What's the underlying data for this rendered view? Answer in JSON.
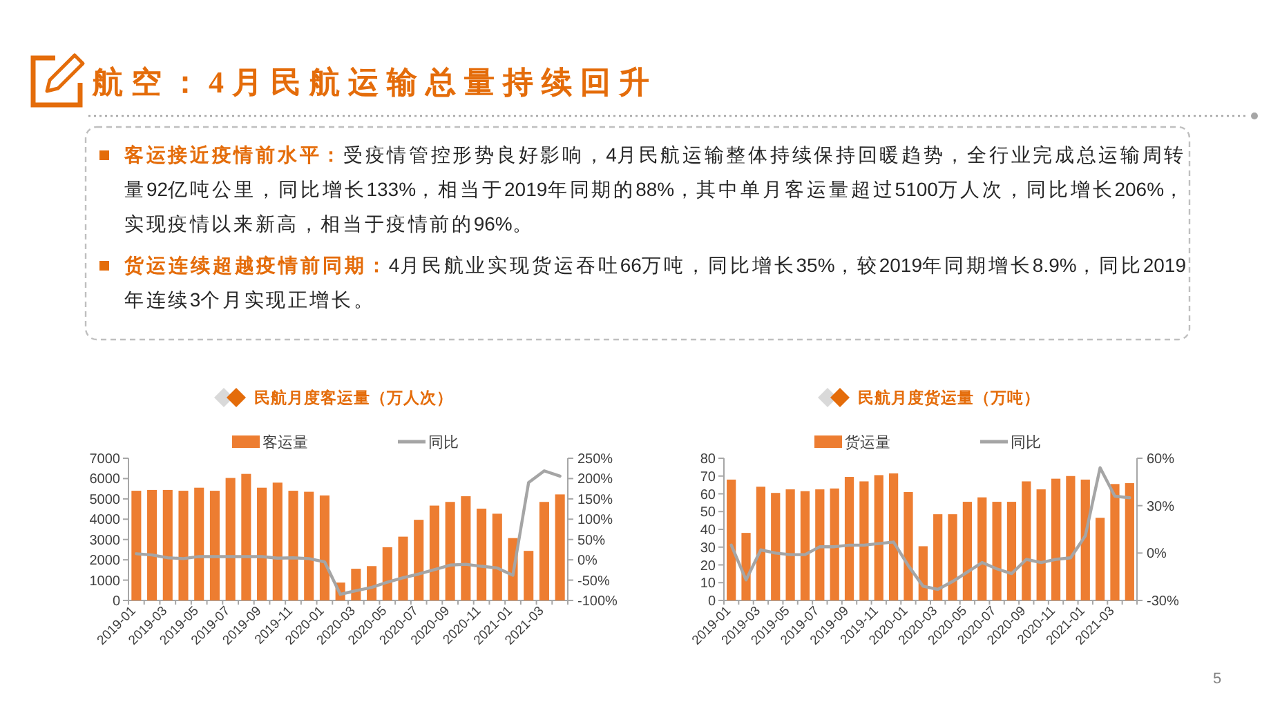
{
  "chart_data": [
    {
      "type": "other",
      "title": "航空：4月民航运输总量持续回升",
      "annotations": [
        "客运接近疫情前水平：",
        "受疫情管控形势良好影响，4月民航运输整体持续保持回暖趋势，全行业完成总运输周转量92亿吨公里，同比增长133%，相当于2019年同期的88%，其中单月客运量超过5100万人次，同比增长206%，实现疫情以来新高，相当于疫情前的96%。",
        "货运连续超越疫情前同期：",
        "4月民航业实现货运吞吐66万吨，同比增长35%，较2019年同期增长8.9%，同比2019年连续3个月实现正增长。",
        "5"
      ]
    },
    {
      "type": "bar",
      "title": "民航月度客运量（万人次）",
      "legend": "top",
      "categories": [
        "2019-01",
        null,
        "2019-03",
        null,
        "2019-05",
        null,
        "2019-07",
        null,
        "2019-09",
        null,
        "2019-11",
        null,
        "2020-01",
        null,
        "2020-03",
        null,
        "2020-05",
        null,
        "2020-07",
        null,
        "2020-09",
        null,
        "2020-11",
        null,
        "2021-01",
        null,
        "2021-03",
        null
      ],
      "series": [
        {
          "name": "客运量",
          "color": "#ed7d31",
          "values": [
            5400,
            5440,
            5440,
            5400,
            5550,
            5400,
            6030,
            6230,
            5550,
            5800,
            5400,
            5350,
            5170,
            880,
            1560,
            1690,
            2620,
            3140,
            3970,
            4670,
            4850,
            5130,
            4520,
            4270,
            3070,
            2440,
            4850,
            5220
          ]
        },
        {
          "name": "同比",
          "type": "line",
          "axis": "y2",
          "color": "#a5a5a5",
          "values": [
            15,
            12,
            5,
            3,
            8,
            8,
            8,
            8,
            8,
            4,
            5,
            3,
            -5,
            -85,
            -76,
            -68,
            -55,
            -44,
            -35,
            -24,
            -13,
            -11,
            -16,
            -20,
            -38,
            190,
            219,
            206
          ]
        }
      ],
      "ylim": [
        0,
        7000
      ],
      "yticks": [
        0,
        1000,
        2000,
        3000,
        4000,
        5000,
        6000,
        7000
      ],
      "y2lim": [
        -100,
        250
      ],
      "y2ticks": [
        {
          "value": -100,
          "label": "-100%"
        },
        {
          "value": -50,
          "label": "-50%"
        },
        {
          "value": 0,
          "label": "0%"
        },
        {
          "value": 50,
          "label": "50%"
        },
        {
          "value": 100,
          "label": "100%"
        },
        {
          "value": 150,
          "label": "150%"
        },
        {
          "value": 200,
          "label": "200%"
        },
        {
          "value": 250,
          "label": "250%"
        }
      ]
    },
    {
      "type": "bar",
      "title": "民航月度货运量（万吨）",
      "legend": "top",
      "categories": [
        "2019-01",
        null,
        "2019-03",
        null,
        "2019-05",
        null,
        "2019-07",
        null,
        "2019-09",
        null,
        "2019-11",
        null,
        "2020-01",
        null,
        "2020-03",
        null,
        "2020-05",
        null,
        "2020-07",
        null,
        "2020-09",
        null,
        "2020-11",
        null,
        "2021-01",
        null,
        "2021-03",
        null
      ],
      "series": [
        {
          "name": "货运量",
          "color": "#ed7d31",
          "values": [
            68,
            38,
            64,
            60.5,
            62.5,
            61.5,
            62.5,
            63,
            69.5,
            67,
            70.5,
            71.5,
            61,
            30.5,
            48.5,
            48.5,
            55.5,
            58,
            55.5,
            55.5,
            67,
            62.5,
            68.5,
            70,
            68,
            46.5,
            65.5,
            66
          ]
        },
        {
          "name": "同比",
          "type": "line",
          "axis": "y2",
          "color": "#a5a5a5",
          "values": [
            5,
            -17,
            2,
            0,
            -1,
            -1,
            4,
            4,
            5,
            5,
            6,
            7,
            -8,
            -21,
            -23,
            -18,
            -12,
            -6,
            -10,
            -13,
            -4,
            -6,
            -4,
            -3,
            11,
            54,
            36,
            35
          ]
        }
      ],
      "ylim": [
        0,
        80
      ],
      "yticks": [
        0,
        10,
        20,
        30,
        40,
        50,
        60,
        70,
        80
      ],
      "y2lim": [
        -30,
        60
      ],
      "y2ticks": [
        {
          "value": -30,
          "label": "-30%"
        },
        {
          "value": 0,
          "label": "0%"
        },
        {
          "value": 30,
          "label": "30%"
        },
        {
          "value": 60,
          "label": "60%"
        }
      ]
    }
  ]
}
